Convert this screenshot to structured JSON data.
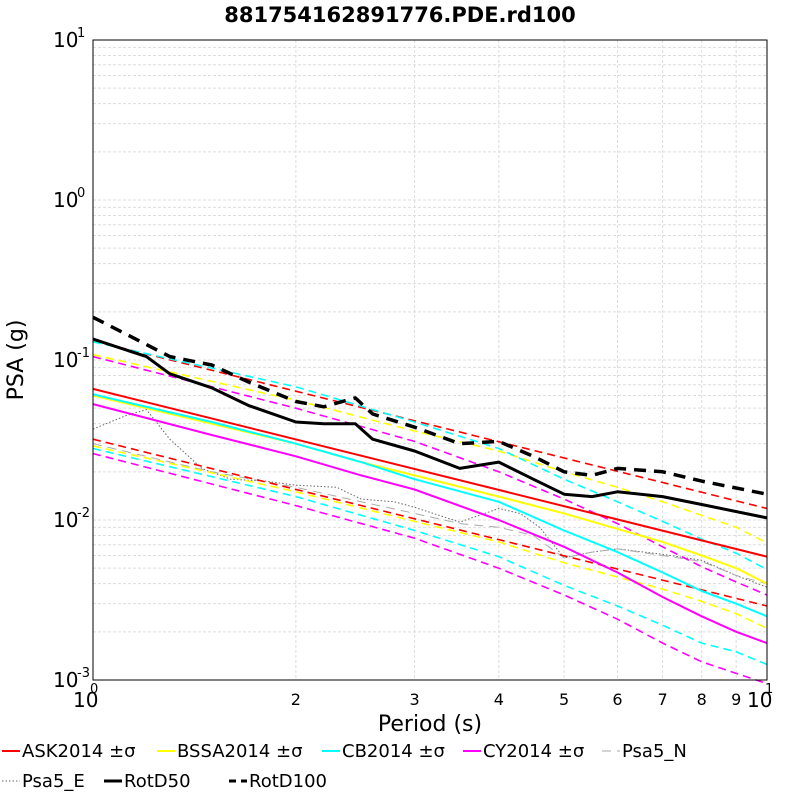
{
  "chart_data": {
    "type": "line",
    "title": "881754162891776.PDE.rd100",
    "xlabel": "Period (s)",
    "ylabel": "PSA (g)",
    "xscale": "log",
    "yscale": "log",
    "xlim": [
      1,
      10
    ],
    "ylim": [
      0.001,
      10
    ],
    "x_major_ticks": [
      {
        "value": 1,
        "base": "10",
        "exp": "0"
      },
      {
        "value": 10,
        "base": "10",
        "exp": "1"
      }
    ],
    "x_minor_ticks": [
      {
        "value": 2,
        "label": "2"
      },
      {
        "value": 3,
        "label": "3"
      },
      {
        "value": 4,
        "label": "4"
      },
      {
        "value": 5,
        "label": "5"
      },
      {
        "value": 6,
        "label": "6"
      },
      {
        "value": 7,
        "label": "7"
      },
      {
        "value": 8,
        "label": "8"
      },
      {
        "value": 9,
        "label": "9"
      }
    ],
    "y_major_ticks": [
      {
        "value": 0.001,
        "base": "10",
        "exp": "-3"
      },
      {
        "value": 0.01,
        "base": "10",
        "exp": "-2"
      },
      {
        "value": 0.1,
        "base": "10",
        "exp": "-1"
      },
      {
        "value": 1,
        "base": "10",
        "exp": "0"
      },
      {
        "value": 10,
        "base": "10",
        "exp": "1"
      }
    ],
    "grid": true,
    "legend_position": "bottom",
    "series": [
      {
        "name": "ASK2014 ±σ",
        "color": "#ff0000",
        "style": "solid",
        "x": [
          1,
          10
        ],
        "y": [
          0.066,
          0.0059
        ]
      },
      {
        "name": "ASK2014 ±σ",
        "color": "#ff0000",
        "style": "dashed",
        "legend": false,
        "x": [
          1,
          10
        ],
        "y": [
          0.132,
          0.0118
        ]
      },
      {
        "name": "ASK2014 ±σ",
        "color": "#ff0000",
        "style": "dashed",
        "legend": false,
        "x": [
          1,
          10
        ],
        "y": [
          0.032,
          0.0029
        ]
      },
      {
        "name": "BSSA2014 ±σ",
        "color": "#ffff00",
        "style": "solid",
        "x": [
          1,
          1.5,
          2,
          2.5,
          3,
          4,
          5,
          6,
          7,
          8,
          9,
          10
        ],
        "y": [
          0.06,
          0.04,
          0.03,
          0.023,
          0.019,
          0.014,
          0.011,
          0.0088,
          0.0073,
          0.006,
          0.005,
          0.004
        ]
      },
      {
        "name": "BSSA2014 ±σ",
        "color": "#ffff00",
        "style": "dashed",
        "legend": false,
        "x": [
          1,
          2,
          3,
          4,
          5,
          6,
          7,
          8,
          9,
          10
        ],
        "y": [
          0.108,
          0.056,
          0.036,
          0.027,
          0.02,
          0.016,
          0.013,
          0.0107,
          0.009,
          0.0072
        ]
      },
      {
        "name": "BSSA2014 ±σ",
        "color": "#ffff00",
        "style": "dashed",
        "legend": false,
        "x": [
          1,
          2,
          3,
          4,
          5,
          6,
          7,
          8,
          9,
          10
        ],
        "y": [
          0.029,
          0.015,
          0.0098,
          0.0073,
          0.0054,
          0.0044,
          0.0037,
          0.0031,
          0.0026,
          0.0021
        ]
      },
      {
        "name": "CB2014 ±σ",
        "color": "#00ffff",
        "style": "solid",
        "x": [
          1,
          1.5,
          2,
          2.5,
          3,
          4,
          5,
          6,
          7,
          8,
          9,
          10
        ],
        "y": [
          0.061,
          0.041,
          0.03,
          0.023,
          0.018,
          0.013,
          0.0086,
          0.0063,
          0.0047,
          0.0036,
          0.003,
          0.0025
        ]
      },
      {
        "name": "CB2014 ±σ",
        "color": "#00ffff",
        "style": "dashed",
        "legend": false,
        "x": [
          1,
          2,
          3,
          4,
          5,
          6,
          7,
          8,
          9,
          10
        ],
        "y": [
          0.13,
          0.068,
          0.041,
          0.028,
          0.018,
          0.013,
          0.0098,
          0.0076,
          0.0062,
          0.0049
        ]
      },
      {
        "name": "CB2014 ±σ",
        "color": "#00ffff",
        "style": "dashed",
        "legend": false,
        "x": [
          1,
          2,
          3,
          4,
          5,
          6,
          7,
          8,
          9,
          10
        ],
        "y": [
          0.028,
          0.014,
          0.0086,
          0.0059,
          0.0039,
          0.0029,
          0.0022,
          0.0017,
          0.0015,
          0.00125
        ]
      },
      {
        "name": "CY2014 ±σ",
        "color": "#ff00ff",
        "style": "solid",
        "x": [
          1,
          1.5,
          2,
          2.5,
          3,
          4,
          5,
          6,
          7,
          8,
          9,
          10
        ],
        "y": [
          0.053,
          0.034,
          0.025,
          0.019,
          0.0155,
          0.01,
          0.0068,
          0.0047,
          0.0033,
          0.0025,
          0.002,
          0.0017
        ]
      },
      {
        "name": "CY2014 ±σ",
        "color": "#ff00ff",
        "style": "dashed",
        "legend": false,
        "x": [
          1,
          2,
          3,
          4,
          5,
          6,
          7,
          8,
          9,
          10
        ],
        "y": [
          0.105,
          0.05,
          0.031,
          0.02,
          0.0135,
          0.0095,
          0.0068,
          0.0051,
          0.0041,
          0.0034
        ]
      },
      {
        "name": "CY2014 ±σ",
        "color": "#ff00ff",
        "style": "dashed",
        "legend": false,
        "x": [
          1,
          2,
          3,
          4,
          5,
          6,
          7,
          8,
          9,
          10
        ],
        "y": [
          0.026,
          0.0123,
          0.0077,
          0.005,
          0.0034,
          0.0024,
          0.0017,
          0.0013,
          0.0011,
          0.00095
        ]
      },
      {
        "name": "Psa5_N",
        "color": "#aaaaaa",
        "style": "long-dashed",
        "x": [
          1,
          1.25,
          1.5,
          2,
          2.5,
          3,
          3.5,
          4,
          4.5,
          5,
          5.5,
          6,
          7,
          8,
          9,
          10
        ],
        "y": [
          0.03,
          0.024,
          0.02,
          0.016,
          0.013,
          0.011,
          0.0095,
          0.009,
          0.008,
          0.0058,
          0.0063,
          0.0066,
          0.006,
          0.0055,
          0.0045,
          0.004
        ]
      },
      {
        "name": "Psa5_E",
        "color": "#666666",
        "style": "dotted",
        "x": [
          1,
          1.12,
          1.2,
          1.3,
          1.45,
          1.6,
          1.8,
          2,
          2.3,
          2.5,
          2.8,
          3,
          3.5,
          4,
          4.3,
          4.6,
          5,
          5.5,
          6,
          7,
          8,
          9,
          10
        ],
        "y": [
          0.037,
          0.045,
          0.049,
          0.032,
          0.021,
          0.018,
          0.0175,
          0.0165,
          0.016,
          0.0135,
          0.013,
          0.012,
          0.0097,
          0.0118,
          0.011,
          0.009,
          0.0058,
          0.0063,
          0.0066,
          0.0061,
          0.0056,
          0.0045,
          0.0038
        ]
      },
      {
        "name": "RotD50",
        "color": "#000000",
        "style": "solid-bold",
        "x": [
          1,
          1.2,
          1.3,
          1.5,
          1.7,
          2,
          2.2,
          2.45,
          2.6,
          3,
          3.5,
          4,
          4.5,
          5,
          5.5,
          6,
          7,
          8,
          10
        ],
        "y": [
          0.135,
          0.105,
          0.082,
          0.067,
          0.052,
          0.041,
          0.04,
          0.04,
          0.032,
          0.027,
          0.021,
          0.023,
          0.018,
          0.0145,
          0.014,
          0.015,
          0.014,
          0.0125,
          0.0103
        ]
      },
      {
        "name": "RotD100",
        "color": "#000000",
        "style": "dashed-bold",
        "x": [
          1,
          1.2,
          1.3,
          1.5,
          1.7,
          2,
          2.2,
          2.45,
          2.6,
          3,
          3.5,
          4,
          4.5,
          5,
          5.5,
          6,
          7,
          8,
          10
        ],
        "y": [
          0.185,
          0.125,
          0.105,
          0.093,
          0.073,
          0.055,
          0.051,
          0.058,
          0.046,
          0.038,
          0.03,
          0.031,
          0.025,
          0.02,
          0.019,
          0.021,
          0.02,
          0.0175,
          0.0145
        ]
      }
    ]
  }
}
